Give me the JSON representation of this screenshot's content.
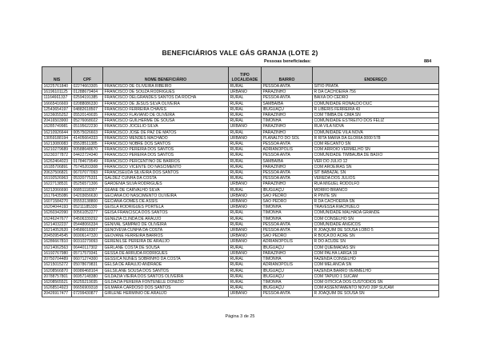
{
  "title": "BENEFICIÁRIOS VALE GÁS GRANJA (LOTE 2)",
  "summary": {
    "label": "Pessoas beneficiadas:",
    "value": "884"
  },
  "columns": [
    "NIS",
    "CPF",
    "NOME BENEFICIÁRIO",
    "TIPO LOCALIDADE",
    "BAIRRO",
    "ENDEREÇO"
  ],
  "rows": [
    [
      "16225761840",
      "02274663305",
      "FRANCISCO DE OLIVEIRA RIBEIRO",
      "RURAL",
      "PESSOA ANTA",
      "SITIO PRATA"
    ],
    [
      "16196101125",
      "01288679404",
      "FRANCISCO DE SOUZA RODRIGUES",
      "URBANO",
      "PARAZINHO",
      "R DA CACHOEIRA 756"
    ],
    [
      "11164661337",
      "02594191385",
      "FRANCISCO DELGRANDES SANTOS DA ROCHA",
      "RURAL",
      "PESSOA ANTA",
      "BAIXA DO CEDRO"
    ],
    [
      "16665416669",
      "02088086330",
      "FRANCISCO DE JESUS SILVA OLIVEIRA",
      "RURAL",
      "SAMBAIBA",
      "COMUNIDADE RONALDO DUC"
    ],
    [
      "12543654197",
      "04882618507",
      "FRANCISCO FERREIRA CHAVES",
      "RURAL",
      "IBUGUAÇU",
      "R LIBERIS FERREIRA 43"
    ],
    [
      "16236055252",
      "05520149035",
      "FRANCISCO FLAVIANO DE OLIVEIRA",
      "RURAL",
      "PARAZINHO",
      "COM TIMBA DE CIMA SN"
    ],
    [
      "20416503900",
      "05276068022",
      "FRANCISCO GUILHERME DE SOUSA",
      "RURAL",
      "TIMONHA",
      "COMUNIDADE ESTREITO DOS FELIZ"
    ],
    [
      "16285749981",
      "05195622230",
      "FRANCISCO JOCELIO SILVA",
      "URBANO",
      "PARAZINHO",
      "RUA VILA NOVA"
    ],
    [
      "16210926644",
      "00575026603",
      "FRANCISCO JOSE DE PAZ DE MATOS",
      "RURAL",
      "PARAZINHO",
      "COMUNIDADE VILA NOVA"
    ],
    [
      "13059188194",
      "41405664333",
      "FRANCISCO MENDES MACHADO",
      "URBANO",
      "PLANALTO DO SOL",
      "R RITA MARIA DA GLORIA 0000 578"
    ],
    [
      "16213080083",
      "05528511385",
      "FRANCISCO NOBRE DOS SANTOS",
      "RURAL",
      "PESSOA ANTA",
      "COM RECANTO SN"
    ],
    [
      "16210279689",
      "00588648670",
      "FRANCISCO PEREIRA DOS SANTOS",
      "RURAL",
      "ADRIANOPOLIS",
      "COM ARROIO VERMELHO SN"
    ],
    [
      "16230377872",
      "04422724340",
      "FRANCISCO PEREIRA DOS SANTOS",
      "RURAL",
      "PESSOA ANTA",
      "COMUNIDADE TIMBAUBA DE BAIXO"
    ],
    [
      "16262464023",
      "01784679549",
      "FRANCISCO PERCENTINO DE BARROS",
      "RURAL",
      "SAMBAIBA",
      "VER DO JULIO 12"
    ],
    [
      "16185706891",
      "75745203308",
      "FRANCISCO VICENTE DO NASCIMENTO",
      "RURAL",
      "PARAZINHO",
      "COM AROEIRAS SN"
    ],
    [
      "20637506821",
      "06707077093",
      "FRANCISEUDA SILVEIRA DOS SANTOS",
      "RURAL",
      "PESSOA ANTA",
      "SIT BABAZAL SN"
    ],
    [
      "16192526963",
      "05320775331",
      "GALDEZ CUNHA DA COSTA",
      "RURAL",
      "PESSOA ANTA",
      "VEREDA DOS JULIOS"
    ],
    [
      "16227138531",
      "05256571306",
      "GARDENIA SILVA RODRIGUES",
      "URBANO",
      "PARAZINHO",
      "RUA MIGUEL RODOLFO"
    ],
    [
      "16212066690",
      "06851118307",
      "GEANE DE CARVALHO SILVA",
      "RURAL",
      "IBUGUAÇU",
      "MORRO BRANCO"
    ],
    [
      "16176435086",
      "04203656630",
      "GECIANA DO NASCIMENTO OLIVEIRA",
      "URBANO",
      "SAO PEDRO",
      "R PINTE SN"
    ],
    [
      "16071584270",
      "05553138800",
      "GECIANA GOMES DE ASSIS",
      "URBANO",
      "SAO PEDRO",
      "R DA CACHOEIRA SN"
    ],
    [
      "16204044193",
      "05211185330",
      "GEISLA RODRIGUES PORTELA",
      "URBANO",
      "TIMONHA",
      "TRAVESSA RIACHUELO"
    ],
    [
      "16260342090",
      "00561052277",
      "GEISA FRANCISCA DOS SANTOS",
      "RURAL",
      "TIMONHA",
      "COMUNIDADE MALHADA GRANDE"
    ],
    [
      "16246247677",
      "04506339292",
      "GENEZIA CLINDA DE ARAUJO",
      "RURAL",
      "TIMONHA",
      "COM CONSELHO SN"
    ],
    [
      "16214032237",
      "05448066334",
      "GENIVAL SAMPAIO DE OLIVEIRA",
      "RURAL",
      "PESSOA ANTA",
      "COMUNIDADE ANGICOS"
    ],
    [
      "16214052620",
      "04586018307",
      "GENOVEVA CUNHA DA COSTA",
      "URBANO",
      "PESSOA ANTA",
      "R JOAQUIM DE SOUSA LOBO 5"
    ],
    [
      "20450954545",
      "06906147320",
      "GEOVANE FERREIRA BARROS",
      "URBANO",
      "SAO PEDRO",
      "R BOCA DO ACRE SN"
    ],
    [
      "16286667810",
      "00310279093",
      "GERENILSE PEREIRA DE ARAUJO",
      "URBANO",
      "ADRIANOPOLIS",
      "R DO ACUDE SN"
    ],
    [
      "16214062563",
      "06440117302",
      "GERLANE COSTA DE SOUSA",
      "RURAL",
      "IBUGUAÇU",
      "COM QUEIMADAS SN"
    ],
    [
      "16192767980",
      "05717579341",
      "GESSA DE ARRUDA RODRIGUES",
      "URBANO",
      "PARAZINHO",
      "COM PALHA LARGA 19"
    ],
    [
      "20750704489",
      "06071274300",
      "GESSICA NUNES SOBRINHO DA COSTA",
      "RURAL",
      "TIMONHA",
      "FAZENDA CONSELHO"
    ],
    [
      "16215015272",
      "05078679831",
      "GELSA DE ARAUJO ANDRADE",
      "RURAL",
      "ADRIANOPOLIS",
      "COM MELANCIA SN"
    ],
    [
      "16208566870",
      "06986468104",
      "GELSILANE SOUSA DOS SANTOS",
      "RURAL",
      "IBUGUAÇU",
      "FAZENDA BARRO VERMELHO"
    ],
    [
      "20788757801",
      "06957148380",
      "GILDAZIA VIEIRA DOS SANTOS OLIVEIRA",
      "RURAL",
      "IBUGUAÇU",
      "COM TAPUIO 1 SUCAM"
    ],
    [
      "16208565521",
      "06255219035",
      "GILDAZIA PEREIRA FONTENELE DONIZIO",
      "RURAL",
      "TIMONHA",
      "COM OITICICA DOS CUSTODIOS SN"
    ],
    [
      "16268514923",
      "06656909318",
      "GILMARA CARDOSO DOS SANTOS",
      "RURAL",
      "IBUGUAÇU",
      "COM ASSENTAMENTO NOVO 20P SUCAM"
    ],
    [
      "20426917477",
      "07299430877",
      "GIRLENE HERMINIO DE ARAUJO",
      "URBANO",
      "PESSOA ANTA",
      "R JOAQUIM DE SOUSA SN"
    ]
  ],
  "footer": "Página 3 de 25"
}
